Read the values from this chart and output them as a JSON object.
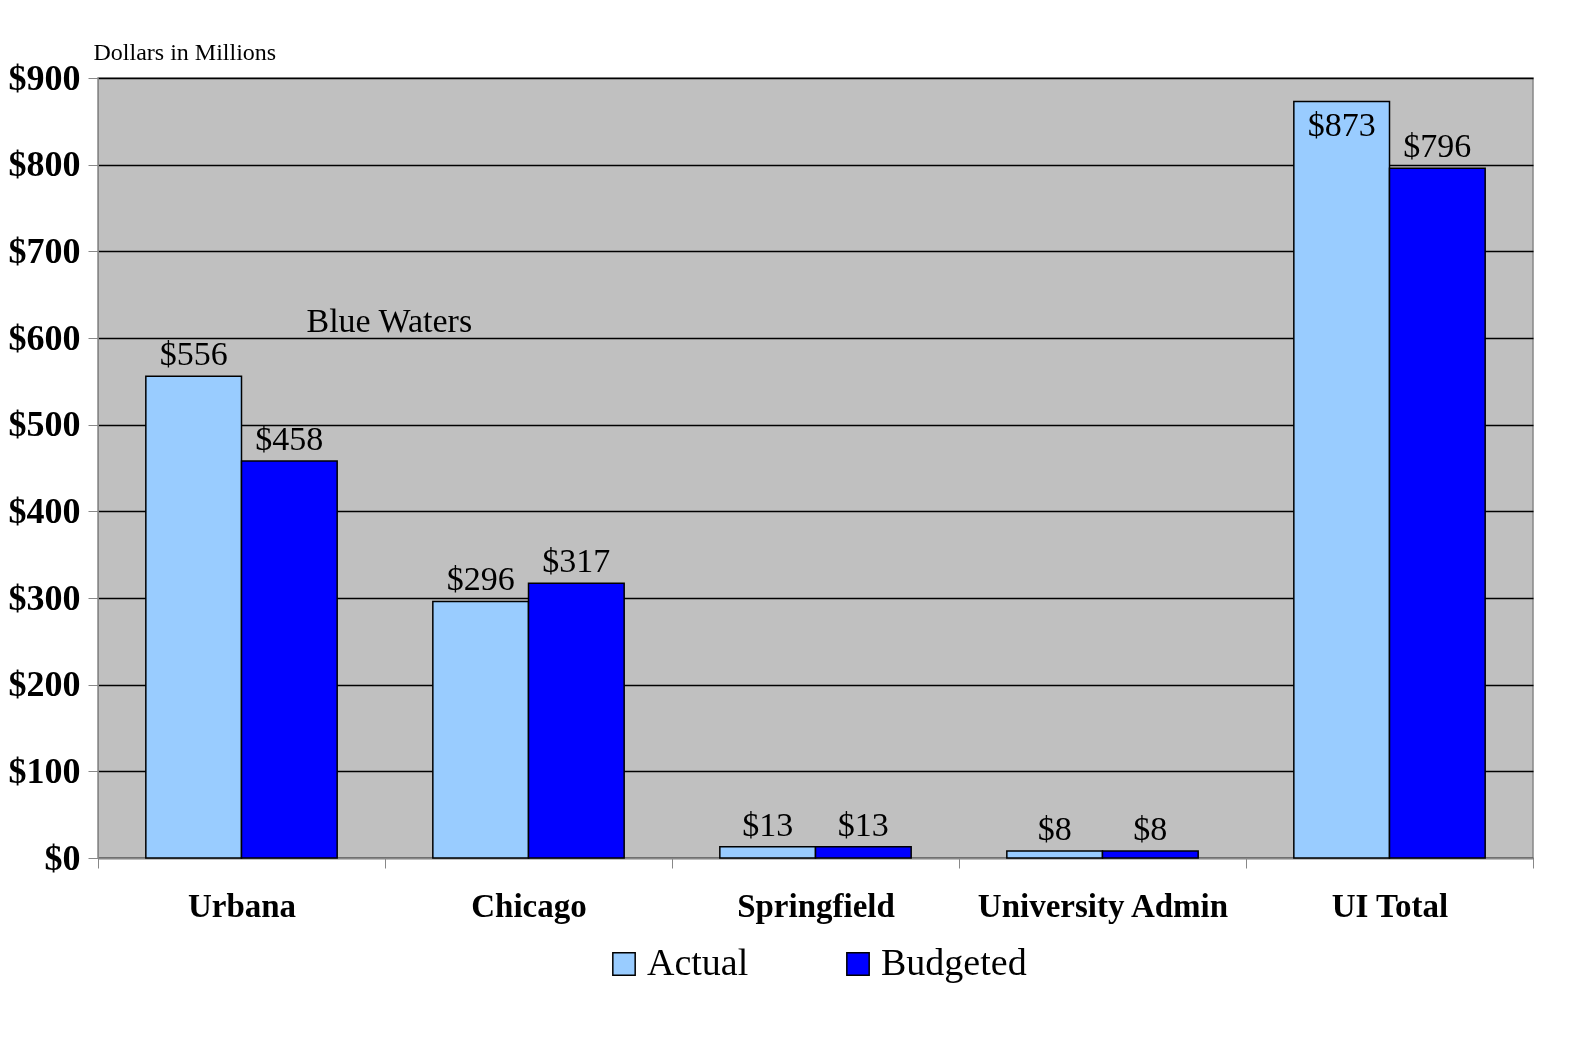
{
  "chart_data": {
    "type": "bar",
    "ylabel": "Dollars in Millions",
    "categories": [
      "Urbana",
      "Chicago",
      "Springfield",
      "University Admin",
      "UI Total"
    ],
    "series": [
      {
        "name": "Actual",
        "color": "#99ccff",
        "values": [
          556,
          296,
          13,
          8,
          873
        ],
        "value_labels": [
          "$556",
          "$296",
          "$13",
          "$8",
          "$873"
        ]
      },
      {
        "name": "Budgeted",
        "color": "#0000ff",
        "values": [
          458,
          317,
          13,
          8,
          796
        ],
        "value_labels": [
          "$458",
          "$317",
          "$13",
          "$8",
          "$796"
        ]
      }
    ],
    "ylim": [
      0,
      900
    ],
    "yticks": [
      {
        "value": 0,
        "label": "$0"
      },
      {
        "value": 100,
        "label": "$100"
      },
      {
        "value": 200,
        "label": "$200"
      },
      {
        "value": 300,
        "label": "$300"
      },
      {
        "value": 400,
        "label": "$400"
      },
      {
        "value": 500,
        "label": "$500"
      },
      {
        "value": 600,
        "label": "$600"
      },
      {
        "value": 700,
        "label": "$700"
      },
      {
        "value": 800,
        "label": "$800"
      },
      {
        "value": 900,
        "label": "$900"
      }
    ],
    "annotations": [
      {
        "text": "Blue Waters",
        "x": "Urbana",
        "y": 530
      }
    ],
    "grid": "y",
    "legend": "bottom"
  }
}
